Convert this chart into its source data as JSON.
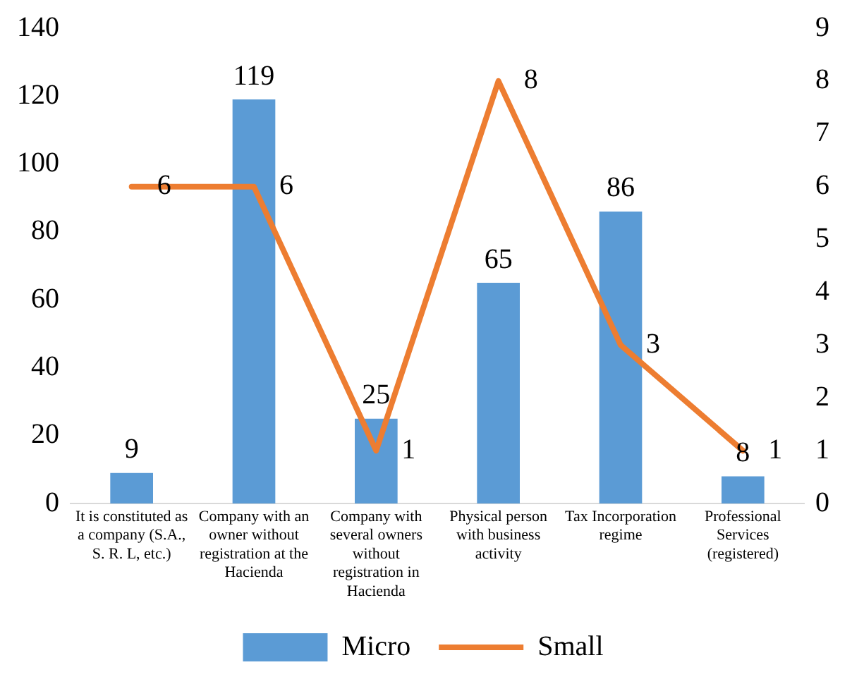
{
  "chart_data": {
    "type": "bar",
    "categories": [
      "It is constituted as a company (S.A., S. R. L, etc.)",
      "Company with an owner without registration at the Hacienda",
      "Company with several owners without registration in Hacienda",
      "Physical person with business activity",
      "Tax Incorporation regime",
      "Professional Services (registered)"
    ],
    "series": [
      {
        "name": "Micro",
        "color": "#5b9bd5",
        "values": [
          9,
          119,
          25,
          65,
          86,
          8
        ]
      },
      {
        "name": "Small",
        "type": "line",
        "axis": "y2",
        "color": "#ed7d31",
        "values": [
          6,
          6,
          1,
          8,
          3,
          1
        ]
      }
    ],
    "ylim": [
      0,
      140
    ],
    "yticks": [
      0,
      20,
      40,
      60,
      80,
      100,
      120,
      140
    ],
    "y2lim": [
      0,
      9
    ],
    "y2ticks": [
      0,
      1,
      2,
      3,
      4,
      5,
      6,
      7,
      8,
      9
    ],
    "data_labels": true,
    "grid": false,
    "legend": "bottom",
    "marker": "none",
    "line_style": "solid"
  }
}
